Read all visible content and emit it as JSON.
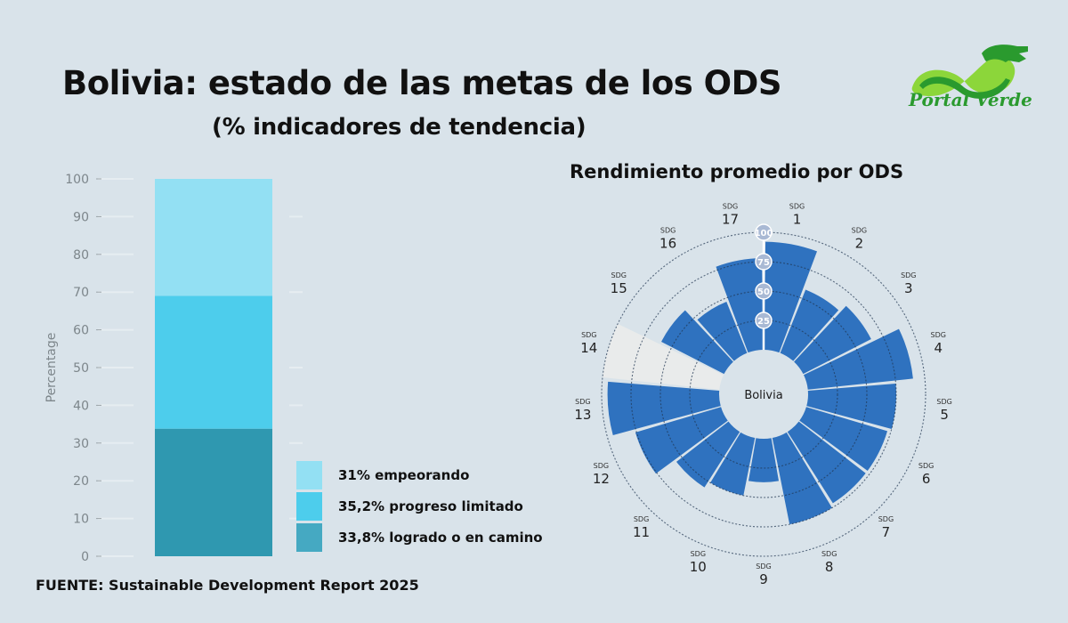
{
  "header": {
    "title": "Bolivia: estado de las metas de los ODS",
    "subtitle": "(% indicadores de tendencia)"
  },
  "logo": {
    "text": "Portal Verde"
  },
  "source": "FUENTE: Sustainable Development Report 2025",
  "colors": {
    "background": "#d9e3ea",
    "worsening": "#93e0f3",
    "limited": "#4dcdec",
    "on_track": "#2f98b0",
    "wedge": "#2f72bf",
    "no_data": "#e9ebeb",
    "logo_green": "#2a9a2e"
  },
  "chart_data": [
    {
      "type": "bar",
      "stacked": true,
      "ylabel": "Percentage",
      "ylim": [
        0,
        100
      ],
      "yticks": [
        "0",
        "10",
        "20",
        "30",
        "40",
        "50",
        "60",
        "70",
        "80",
        "90",
        "100"
      ],
      "series": [
        {
          "name": "33,8% logrado o en camino",
          "value": 33.8,
          "color_key": "on_track"
        },
        {
          "name": "35,2% progreso limitado",
          "value": 35.2,
          "color_key": "limited"
        },
        {
          "name": "31% empeorando",
          "value": 31,
          "color_key": "worsening"
        }
      ],
      "legend": [
        "31% empeorando",
        "35,2% progreso limitado",
        "33,8% logrado o en camino"
      ],
      "legend_position": "bottom-right"
    },
    {
      "type": "radial-bar",
      "title": "Rendimiento promedio por ODS",
      "center_label": "Bolivia",
      "rlim": [
        0,
        100
      ],
      "rticks": [
        "25",
        "50",
        "75",
        "100"
      ],
      "category_prefix": "SDG",
      "categories": [
        "1",
        "2",
        "3",
        "4",
        "5",
        "6",
        "7",
        "8",
        "9",
        "10",
        "11",
        "12",
        "13",
        "14",
        "15",
        "16",
        "17"
      ],
      "values": [
        92,
        58,
        65,
        90,
        75,
        72,
        72,
        75,
        37,
        50,
        56,
        76,
        95,
        null,
        60,
        47,
        78
      ]
    }
  ]
}
